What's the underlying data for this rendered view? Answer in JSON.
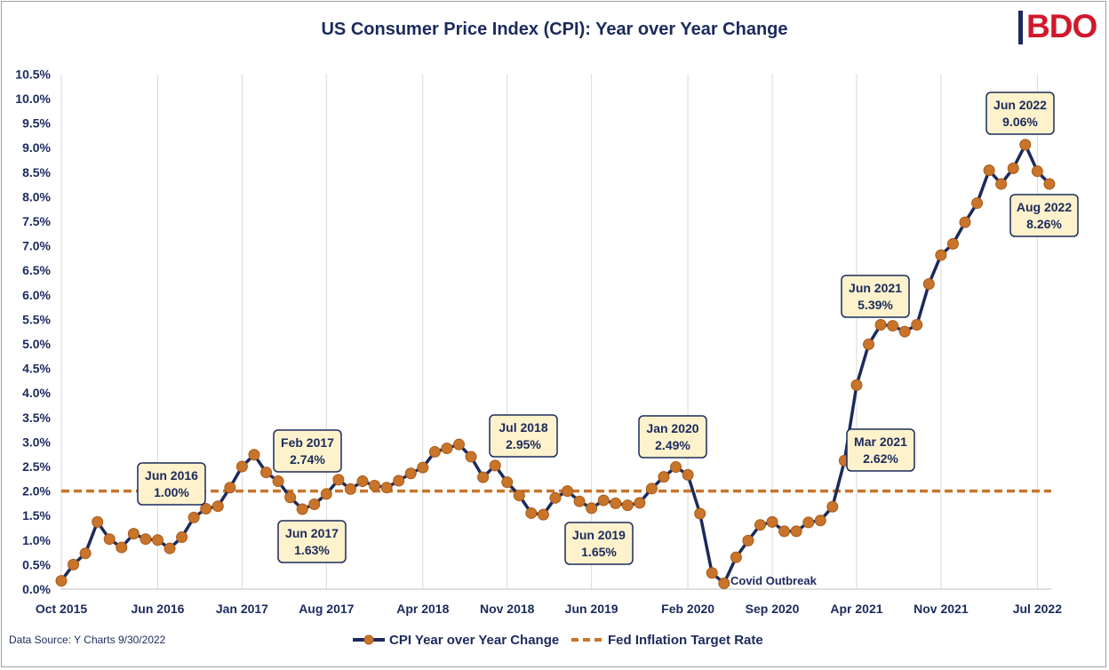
{
  "chart_data": {
    "type": "line",
    "title": "US Consumer Price Index (CPI): Year over Year Change",
    "xlabel": "",
    "ylabel": "",
    "ylim": [
      0,
      10.5
    ],
    "grid": "vertical",
    "legend": "bottom",
    "x_tick_labels": [
      "Oct 2015",
      "Jun 2016",
      "Jan 2017",
      "Aug 2017",
      "Apr 2018",
      "Nov 2018",
      "Jun 2019",
      "Feb 2020",
      "Sep 2020",
      "Apr 2021",
      "Nov 2021",
      "Jul 2022"
    ],
    "x_tick_index": [
      0,
      8,
      15,
      22,
      30,
      37,
      44,
      52,
      59,
      66,
      73,
      81
    ],
    "y_tick_labels": [
      "0.0%",
      "0.5%",
      "1.0%",
      "1.5%",
      "2.0%",
      "2.5%",
      "3.0%",
      "3.5%",
      "4.0%",
      "4.5%",
      "5.0%",
      "5.5%",
      "6.0%",
      "6.5%",
      "7.0%",
      "7.5%",
      "8.0%",
      "8.5%",
      "9.0%",
      "9.5%",
      "10.0%",
      "10.5%"
    ],
    "series": [
      {
        "name": "CPI Year over Year Change",
        "color": "#1b2a5c",
        "marker_color": "#c8742a",
        "values": [
          0.17,
          0.5,
          0.73,
          1.37,
          1.02,
          0.85,
          1.13,
          1.02,
          1.0,
          0.83,
          1.06,
          1.46,
          1.64,
          1.69,
          2.07,
          2.5,
          2.74,
          2.38,
          2.2,
          1.87,
          1.63,
          1.73,
          1.94,
          2.23,
          2.04,
          2.2,
          2.11,
          2.07,
          2.21,
          2.36,
          2.48,
          2.8,
          2.87,
          2.95,
          2.7,
          2.28,
          2.52,
          2.18,
          1.91,
          1.55,
          1.52,
          1.86,
          2.0,
          1.79,
          1.65,
          1.81,
          1.75,
          1.71,
          1.76,
          2.05,
          2.29,
          2.49,
          2.33,
          1.54,
          0.33,
          0.12,
          0.65,
          0.99,
          1.31,
          1.37,
          1.18,
          1.18,
          1.36,
          1.4,
          1.68,
          2.62,
          4.16,
          4.99,
          5.39,
          5.37,
          5.25,
          5.39,
          6.22,
          6.81,
          7.04,
          7.48,
          7.87,
          8.54,
          8.26,
          8.58,
          9.06,
          8.52,
          8.26
        ]
      },
      {
        "name": "Fed Inflation Target Rate",
        "color": "#c8742a",
        "style": "dashed",
        "value": 2.0
      }
    ],
    "annotations": [
      {
        "id": "jun2016",
        "line1": "Jun 2016",
        "line2": "1.00%"
      },
      {
        "id": "feb2017",
        "line1": "Feb 2017",
        "line2": "2.74%"
      },
      {
        "id": "jun2017",
        "line1": "Jun 2017",
        "line2": "1.63%"
      },
      {
        "id": "jul2018",
        "line1": "Jul 2018",
        "line2": "2.95%"
      },
      {
        "id": "jun2019",
        "line1": "Jun 2019",
        "line2": "1.65%"
      },
      {
        "id": "jan2020",
        "line1": "Jan 2020",
        "line2": "2.49%"
      },
      {
        "id": "mar2021",
        "line1": "Mar 2021",
        "line2": "2.62%"
      },
      {
        "id": "jun2021",
        "line1": "Jun 2021",
        "line2": "5.39%"
      },
      {
        "id": "jun2022",
        "line1": "Jun 2022",
        "line2": "9.06%"
      },
      {
        "id": "aug2022",
        "line1": "Aug 2022",
        "line2": "8.26%"
      }
    ],
    "covid_label": "Covid Outbreak"
  },
  "logo": {
    "text": "BDO"
  },
  "footer": {
    "source": "Data Source: Y Charts 9/30/2022"
  },
  "colors": {
    "navy": "#1b2a5c",
    "orange": "#c8742a",
    "box_fill": "#fdf2cc",
    "grid": "#d9d9d9"
  }
}
